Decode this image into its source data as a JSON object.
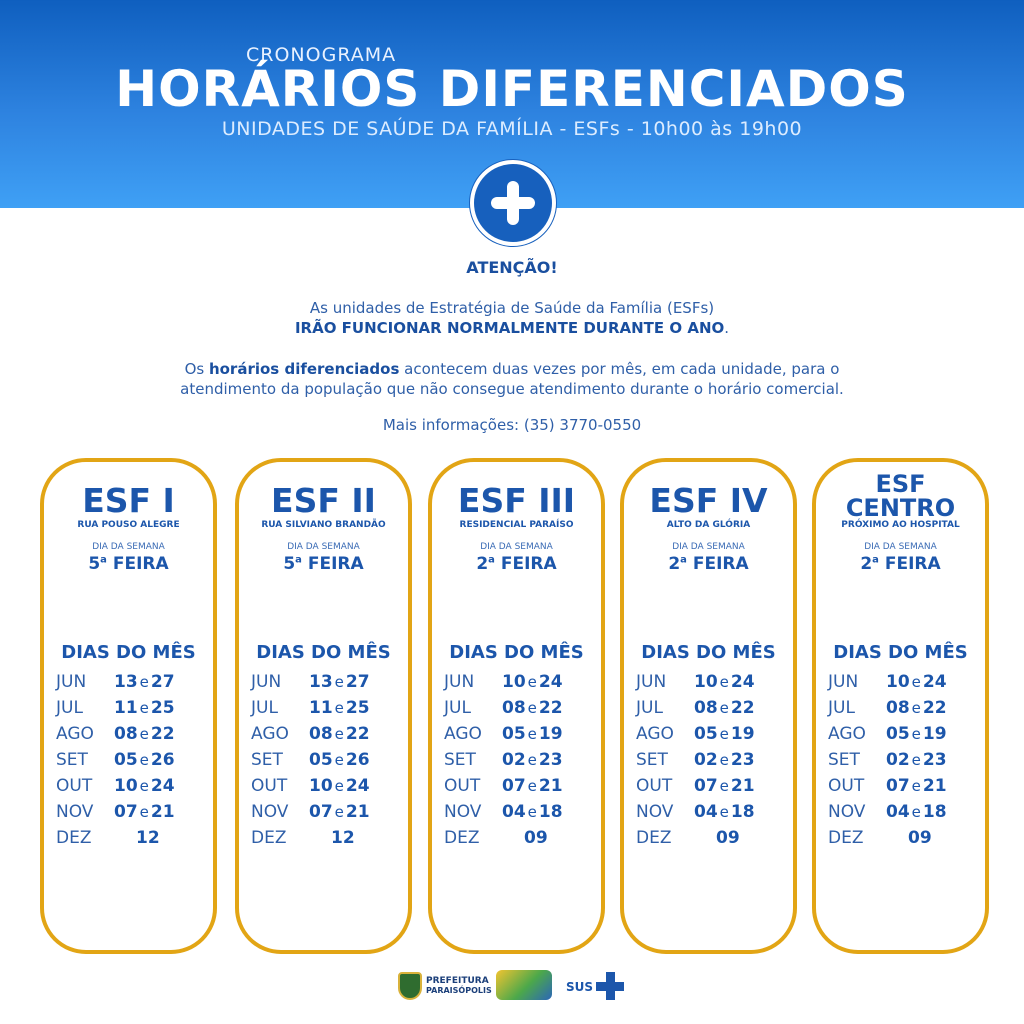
{
  "header": {
    "kicker": "CRONOGRAMA",
    "title": "HORÁRIOS DIFERENCIADOS",
    "subtitle": "UNIDADES DE SAÚDE DA FAMÍLIA - ESFs - 10h00 às 19h00"
  },
  "notice": {
    "title": "ATENÇÃO!",
    "line1": "As unidades de Estratégia de Saúde da Família (ESFs)",
    "line2_bold": "IRÃO FUNCIONAR NORMALMENTE DURANTE O ANO",
    "line2_end": ".",
    "para_start": "Os ",
    "para_bold": "horários diferenciados",
    "para_rest": " acontecem duas vezes por mês, em cada unidade, para o",
    "para_line2": "atendimento da população que não consegue atendimento durante o horário comercial.",
    "info": "Mais informações: (35) 3770-0550"
  },
  "card_labels": {
    "day_label": "DIA DA SEMANA",
    "feira": "FEIRA",
    "month_head": "DIAS DO MÊS",
    "and": "e"
  },
  "cards": [
    {
      "name": "ESF I",
      "address": "RUA POUSO ALEGRE",
      "day_num": "5",
      "day_sup": "a",
      "rows": [
        {
          "m": "JUN",
          "a": "13",
          "b": "27"
        },
        {
          "m": "JUL",
          "a": "11",
          "b": "25"
        },
        {
          "m": "AGO",
          "a": "08",
          "b": "22"
        },
        {
          "m": "SET",
          "a": "05",
          "b": "26"
        },
        {
          "m": "OUT",
          "a": "10",
          "b": "24"
        },
        {
          "m": "NOV",
          "a": "07",
          "b": "21"
        },
        {
          "m": "DEZ",
          "a": "12",
          "b": ""
        }
      ]
    },
    {
      "name": "ESF II",
      "address": "RUA SILVIANO BRANDÃO",
      "day_num": "5",
      "day_sup": "a",
      "rows": [
        {
          "m": "JUN",
          "a": "13",
          "b": "27"
        },
        {
          "m": "JUL",
          "a": "11",
          "b": "25"
        },
        {
          "m": "AGO",
          "a": "08",
          "b": "22"
        },
        {
          "m": "SET",
          "a": "05",
          "b": "26"
        },
        {
          "m": "OUT",
          "a": "10",
          "b": "24"
        },
        {
          "m": "NOV",
          "a": "07",
          "b": "21"
        },
        {
          "m": "DEZ",
          "a": "12",
          "b": ""
        }
      ]
    },
    {
      "name": "ESF III",
      "address": "RESIDENCIAL PARAÍSO",
      "day_num": "2",
      "day_sup": "a",
      "rows": [
        {
          "m": "JUN",
          "a": "10",
          "b": "24"
        },
        {
          "m": "JUL",
          "a": "08",
          "b": "22"
        },
        {
          "m": "AGO",
          "a": "05",
          "b": "19"
        },
        {
          "m": "SET",
          "a": "02",
          "b": "23"
        },
        {
          "m": "OUT",
          "a": "07",
          "b": "21"
        },
        {
          "m": "NOV",
          "a": "04",
          "b": "18"
        },
        {
          "m": "DEZ",
          "a": "09",
          "b": ""
        }
      ]
    },
    {
      "name": "ESF IV",
      "address": "ALTO DA GLÓRIA",
      "day_num": "2",
      "day_sup": "a",
      "rows": [
        {
          "m": "JUN",
          "a": "10",
          "b": "24"
        },
        {
          "m": "JUL",
          "a": "08",
          "b": "22"
        },
        {
          "m": "AGO",
          "a": "05",
          "b": "19"
        },
        {
          "m": "SET",
          "a": "02",
          "b": "23"
        },
        {
          "m": "OUT",
          "a": "07",
          "b": "21"
        },
        {
          "m": "NOV",
          "a": "04",
          "b": "18"
        },
        {
          "m": "DEZ",
          "a": "09",
          "b": ""
        }
      ]
    },
    {
      "name_line1": "ESF",
      "name_line2": "CENTRO",
      "address": "PRÓXIMO AO HOSPITAL",
      "day_num": "2",
      "day_sup": "a",
      "rows": [
        {
          "m": "JUN",
          "a": "10",
          "b": "24"
        },
        {
          "m": "JUL",
          "a": "08",
          "b": "22"
        },
        {
          "m": "AGO",
          "a": "05",
          "b": "19"
        },
        {
          "m": "SET",
          "a": "02",
          "b": "23"
        },
        {
          "m": "OUT",
          "a": "07",
          "b": "21"
        },
        {
          "m": "NOV",
          "a": "04",
          "b": "18"
        },
        {
          "m": "DEZ",
          "a": "09",
          "b": ""
        }
      ]
    }
  ],
  "footer": {
    "pref_line1": "PREFEITURA",
    "pref_line2": "PARAISÓPOLIS",
    "sus": "SUS"
  },
  "colors": {
    "primary_blue": "#1c56ab",
    "accent_gold": "#e2a515",
    "header_blue": "#2e83e0"
  }
}
